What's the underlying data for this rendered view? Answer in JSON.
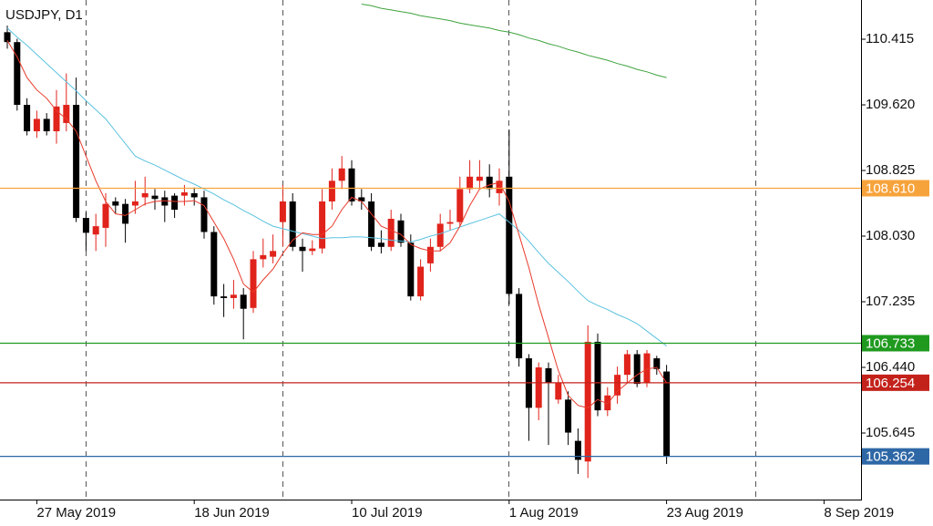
{
  "chart_data": {
    "type": "candlestick",
    "title": "USDJPY, D1",
    "categories": [
      null,
      null,
      null,
      "27 May 2019",
      null,
      null,
      null,
      null,
      null,
      null,
      null,
      null,
      null,
      null,
      null,
      null,
      null,
      null,
      null,
      "18 Jun 2019",
      null,
      null,
      null,
      null,
      null,
      null,
      null,
      null,
      null,
      null,
      null,
      null,
      null,
      null,
      null,
      "10 Jul 2019",
      null,
      null,
      null,
      null,
      null,
      null,
      null,
      null,
      null,
      null,
      null,
      null,
      null,
      null,
      null,
      "1 Aug 2019",
      null,
      null,
      null,
      null,
      null,
      null,
      null,
      null,
      null,
      null,
      null,
      null,
      null,
      null,
      null,
      "23 Aug 2019",
      null,
      null,
      null,
      null,
      null,
      null,
      null,
      null,
      null,
      null,
      null,
      null,
      null,
      null,
      null,
      "8 Sep 2019",
      null,
      null,
      null
    ],
    "open": [
      110.5,
      110.38,
      109.62,
      109.3,
      109.45,
      109.3,
      109.4,
      109.62,
      108.25,
      108.05,
      108.13,
      108.45,
      108.42,
      108.4,
      108.5,
      108.52,
      108.5,
      108.52,
      108.52,
      108.55,
      108.5,
      108.08,
      107.3,
      107.28,
      107.32,
      107.16,
      107.75,
      107.78,
      108.2,
      108.45,
      107.9,
      107.85,
      107.88,
      108.45,
      108.7,
      108.85,
      108.5,
      108.45,
      107.95,
      107.9,
      108.22,
      107.95,
      107.3,
      107.7,
      107.9,
      108.18,
      108.2,
      108.6,
      108.7,
      108.75,
      108.55,
      108.75,
      107.33,
      106.55,
      105.95,
      106.43,
      106.05,
      106.05,
      105.55,
      105.3,
      106.75,
      105.92,
      106.1,
      106.35,
      106.6,
      106.25,
      106.55,
      106.39,
      null,
      null,
      null,
      null,
      null,
      null,
      null,
      null,
      null,
      null,
      null,
      null,
      null,
      null,
      null,
      null,
      null,
      null,
      null
    ],
    "high": [
      110.58,
      110.42,
      109.7,
      109.55,
      109.52,
      109.8,
      110.0,
      109.95,
      108.32,
      108.3,
      108.55,
      108.5,
      108.48,
      108.7,
      108.75,
      108.6,
      108.58,
      108.55,
      108.65,
      108.62,
      108.58,
      108.15,
      107.45,
      107.5,
      107.4,
      107.85,
      108.0,
      108.05,
      108.65,
      108.55,
      108.0,
      107.98,
      108.6,
      108.85,
      109.0,
      108.95,
      108.6,
      108.55,
      108.1,
      108.35,
      108.3,
      108.05,
      107.75,
      108.0,
      108.3,
      108.35,
      108.75,
      108.95,
      108.95,
      108.9,
      108.85,
      109.32,
      107.4,
      106.6,
      106.5,
      106.5,
      106.35,
      106.15,
      105.7,
      106.95,
      106.85,
      106.2,
      106.45,
      106.65,
      106.65,
      106.65,
      106.58,
      106.47,
      null,
      null,
      null,
      null,
      null,
      null,
      null,
      null,
      null,
      null,
      null,
      null,
      null,
      null,
      null,
      null,
      null,
      null,
      null
    ],
    "low": [
      110.3,
      109.55,
      109.25,
      109.22,
      109.25,
      109.15,
      109.3,
      108.2,
      107.85,
      107.85,
      107.9,
      108.3,
      107.95,
      108.3,
      108.4,
      108.35,
      108.2,
      108.25,
      108.4,
      108.4,
      108.0,
      107.2,
      107.05,
      107.15,
      106.78,
      107.1,
      107.65,
      107.7,
      107.9,
      107.85,
      107.6,
      107.8,
      107.82,
      108.35,
      108.6,
      108.4,
      108.35,
      107.85,
      107.82,
      107.85,
      107.9,
      107.25,
      107.25,
      107.6,
      107.85,
      108.1,
      108.15,
      108.55,
      108.6,
      108.5,
      108.4,
      107.2,
      106.45,
      105.55,
      105.8,
      105.5,
      106.0,
      105.5,
      105.15,
      105.1,
      105.85,
      105.85,
      106.0,
      106.25,
      106.2,
      106.2,
      106.35,
      105.27,
      null,
      null,
      null,
      null,
      null,
      null,
      null,
      null,
      null,
      null,
      null,
      null,
      null,
      null,
      null,
      null,
      null,
      null,
      null
    ],
    "close": [
      110.38,
      109.62,
      109.3,
      109.45,
      109.3,
      109.6,
      109.62,
      108.25,
      108.07,
      108.15,
      108.42,
      108.4,
      108.18,
      108.45,
      108.55,
      108.48,
      108.4,
      108.35,
      108.56,
      108.5,
      108.08,
      107.3,
      107.28,
      107.32,
      107.15,
      107.75,
      107.8,
      107.85,
      108.45,
      107.9,
      107.85,
      107.88,
      108.45,
      108.7,
      108.85,
      108.45,
      108.45,
      107.9,
      107.9,
      108.24,
      107.95,
      107.3,
      107.66,
      107.9,
      108.18,
      108.2,
      108.6,
      108.75,
      108.75,
      108.6,
      108.7,
      107.33,
      106.55,
      105.95,
      106.44,
      106.25,
      106.25,
      105.65,
      105.32,
      106.75,
      105.92,
      106.1,
      106.35,
      106.6,
      106.24,
      106.61,
      106.42,
      105.36,
      null,
      null,
      null,
      null,
      null,
      null,
      null,
      null,
      null,
      null,
      null,
      null,
      null,
      null,
      null,
      null,
      null,
      null,
      null
    ],
    "up_color": "#e0231b",
    "down_color": "#000000",
    "lines": [
      {
        "color": "#5bc2e0",
        "values": [
          110.55,
          110.44,
          110.34,
          110.23,
          110.12,
          110.01,
          109.9,
          109.79,
          109.67,
          109.56,
          109.45,
          109.3,
          109.15,
          109.0,
          108.94,
          108.89,
          108.83,
          108.77,
          108.71,
          108.66,
          108.6,
          108.54,
          108.47,
          108.41,
          108.34,
          108.28,
          108.21,
          108.15,
          108.12,
          108.09,
          108.06,
          108.03,
          108.0,
          108.01,
          108.01,
          108.02,
          108.02,
          108.01,
          108.0,
          107.98,
          107.97,
          107.96,
          107.99,
          108.03,
          108.06,
          108.1,
          108.14,
          108.18,
          108.22,
          108.26,
          108.3,
          108.2,
          108.1,
          107.97,
          107.83,
          107.7,
          107.59,
          107.48,
          107.36,
          107.25,
          107.19,
          107.14,
          107.08,
          107.03,
          106.97,
          106.88,
          106.79,
          106.7,
          null,
          null,
          null,
          null,
          null,
          null,
          null,
          null,
          null,
          null,
          null,
          null,
          null,
          null,
          null,
          null,
          null,
          null,
          null
        ]
      },
      {
        "color": "#e8392a",
        "values": [
          110.4,
          110.2,
          109.95,
          109.8,
          109.7,
          109.55,
          109.45,
          109.3,
          109.0,
          108.7,
          108.45,
          108.3,
          108.28,
          108.35,
          108.42,
          108.45,
          108.46,
          108.45,
          108.45,
          108.46,
          108.4,
          108.2,
          108.0,
          107.75,
          107.45,
          107.35,
          107.5,
          107.63,
          107.82,
          107.98,
          108.07,
          108.05,
          108.05,
          108.15,
          108.35,
          108.5,
          108.45,
          108.3,
          108.15,
          108.1,
          108.05,
          107.93,
          107.88,
          107.85,
          107.85,
          107.95,
          108.15,
          108.4,
          108.6,
          108.65,
          108.68,
          108.45,
          108.05,
          107.65,
          107.2,
          106.8,
          106.4,
          106.1,
          105.98,
          105.95,
          106.05,
          106.0,
          106.15,
          106.25,
          106.35,
          106.42,
          106.44,
          106.25,
          null,
          null,
          null,
          null,
          null,
          null,
          null,
          null,
          null,
          null,
          null,
          null,
          null,
          null,
          null,
          null,
          null,
          null,
          null
        ]
      },
      {
        "color": "#3fa33f",
        "values": [
          null,
          null,
          null,
          null,
          null,
          null,
          null,
          null,
          null,
          null,
          null,
          null,
          null,
          null,
          null,
          null,
          null,
          null,
          null,
          null,
          null,
          null,
          null,
          null,
          null,
          null,
          null,
          null,
          null,
          null,
          null,
          null,
          null,
          null,
          null,
          null,
          110.84,
          110.82,
          110.79,
          110.77,
          110.75,
          110.73,
          110.7,
          110.68,
          110.66,
          110.64,
          110.61,
          110.59,
          110.57,
          110.55,
          110.52,
          110.5,
          110.47,
          110.43,
          110.4,
          110.36,
          110.33,
          110.29,
          110.26,
          110.22,
          110.19,
          110.16,
          110.12,
          110.09,
          110.05,
          110.02,
          109.98,
          109.95,
          null,
          null,
          null,
          null,
          null,
          null,
          null,
          null,
          null,
          null,
          null,
          null,
          null,
          null,
          null,
          null,
          null,
          null,
          null
        ]
      }
    ],
    "levels": [
      {
        "value": 108.61,
        "label": "108.610",
        "color": "#f7a33b"
      },
      {
        "value": 106.733,
        "color": "#1f9a1f"
      },
      {
        "value": 106.254,
        "color": "#c3221b"
      },
      {
        "value": 105.362,
        "color": "#2e67a6"
      }
    ],
    "ylim": [
      104.839,
      110.89
    ],
    "yticks": [
      110.415,
      {
        "value": 109.62,
        "label": "109.620"
      },
      108.825,
      {
        "value": 108.03,
        "label": "108.030"
      },
      107.235,
      {
        "value": 106.44,
        "label": "106.440"
      },
      105.645
    ]
  }
}
